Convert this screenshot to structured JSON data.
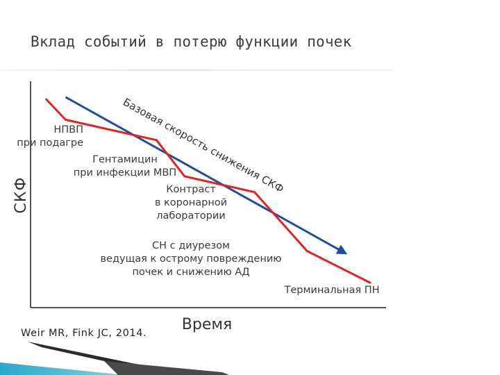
{
  "slide": {
    "title": "Вклад событий в потерю функции почек",
    "citation": "Weir MR, Fink JC, 2014."
  },
  "chart_data": {
    "type": "line",
    "title": "",
    "xlabel": "Время",
    "ylabel": "СКФ",
    "grid": false,
    "legend": "none",
    "x_ticks": [],
    "y_ticks": [],
    "series": [
      {
        "name": "Базовая скорость снижения СКФ",
        "color": "#1f4e9e",
        "arrow": true,
        "x": [
          0.0,
          1.0
        ],
        "y": [
          0.93,
          0.24
        ]
      },
      {
        "name": "",
        "color": "#e32222",
        "arrow": false,
        "x": [
          0.045,
          0.1,
          0.36,
          0.44,
          0.64,
          0.79,
          0.97
        ],
        "y": [
          0.92,
          0.83,
          0.74,
          0.58,
          0.51,
          0.25,
          0.11
        ]
      }
    ],
    "annotations": [
      {
        "id": "nsaid",
        "lines": [
          "НПВП",
          "при подагре"
        ]
      },
      {
        "id": "gentamicin",
        "lines": [
          "Гентамицин",
          "при инфекции МВП"
        ]
      },
      {
        "id": "contrast",
        "lines": [
          "Контраст",
          "в коронарной",
          "лаборатории"
        ]
      },
      {
        "id": "hf",
        "lines": [
          "СН с диурезом",
          "ведущая к острому повреждению",
          "почек и снижению АД"
        ]
      },
      {
        "id": "esrd",
        "lines": [
          "Терминальная ПН"
        ]
      }
    ],
    "colors": {
      "baseline": "#1f4e9e",
      "events": "#e32222",
      "axis": "#555555",
      "text": "#3a3a3a"
    }
  }
}
